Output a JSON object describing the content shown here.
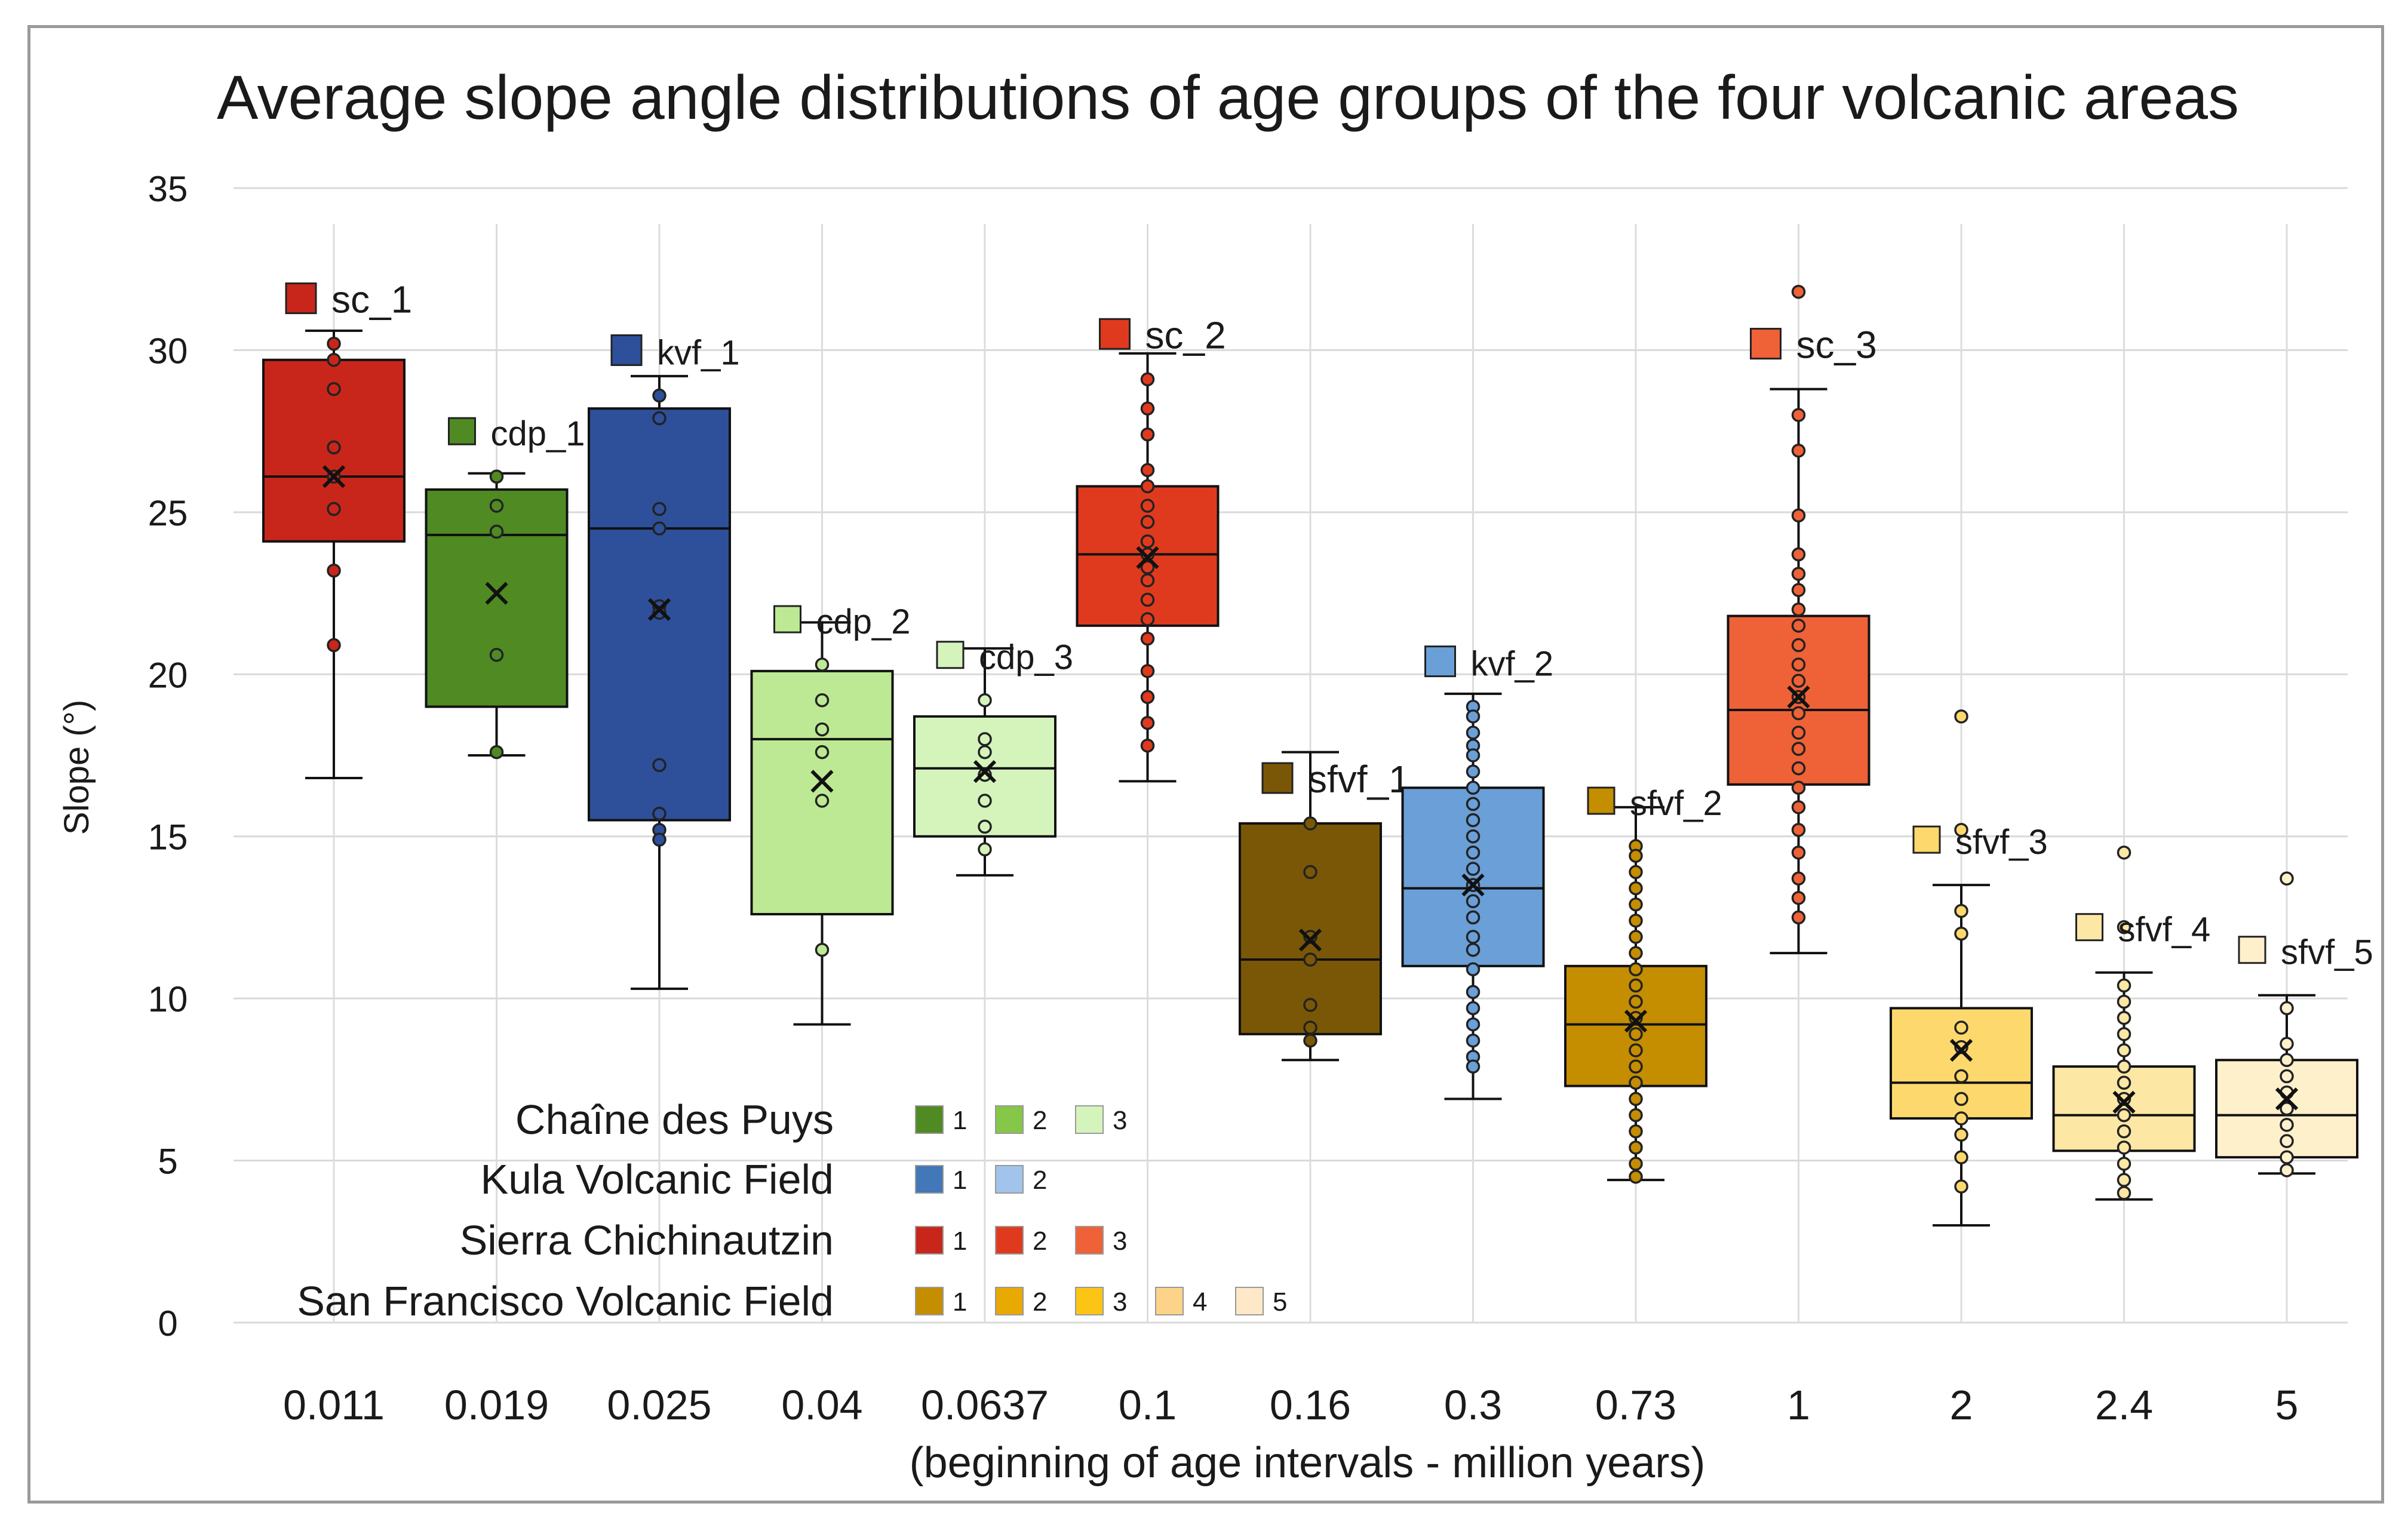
{
  "chart_data": {
    "type": "box",
    "title": "Average slope angle distributions of age groups of the four volcanic areas",
    "ylabel": "Slope (°)",
    "xlabel": "(beginning of age intervals - million years)",
    "ylim": [
      0,
      35
    ],
    "y_ticks": [
      0,
      5,
      10,
      15,
      20,
      25,
      30,
      35
    ],
    "grid": true,
    "categories": [
      "0.011",
      "0.019",
      "0.025",
      "0.04",
      "0.0637",
      "0.1",
      "0.16",
      "0.3",
      "0.73",
      "1",
      "2",
      "2.4",
      "5"
    ],
    "series": [
      {
        "name": "sc_1",
        "category": "0.011",
        "color": "#c8261a",
        "min": 16.8,
        "q1": 24.1,
        "median": 26.1,
        "q3": 29.7,
        "max": 30.6,
        "mean": 26.1,
        "points": [
          30.2,
          29.7,
          28.8,
          27.0,
          26.1,
          25.1,
          23.2,
          20.9
        ]
      },
      {
        "name": "cdp_1",
        "category": "0.019",
        "color": "#4f8a23",
        "min": 17.5,
        "q1": 19.0,
        "median": 24.3,
        "q3": 25.7,
        "max": 26.2,
        "mean": 22.5,
        "points": [
          26.1,
          25.2,
          24.4,
          20.6,
          17.6
        ]
      },
      {
        "name": "kvf_1",
        "category": "0.025",
        "color": "#2e509a",
        "min": 10.3,
        "q1": 15.5,
        "median": 24.5,
        "q3": 28.2,
        "max": 29.2,
        "mean": 22.0,
        "points": [
          28.6,
          27.9,
          25.1,
          24.5,
          22.1,
          21.9,
          17.2,
          15.7,
          15.2,
          14.9
        ]
      },
      {
        "name": "cdp_2",
        "category": "0.04",
        "color": "#bde994",
        "min": 9.2,
        "q1": 12.6,
        "median": 18.0,
        "q3": 20.1,
        "max": 21.6,
        "mean": 16.7,
        "points": [
          20.3,
          19.2,
          18.3,
          17.6,
          16.1,
          11.5
        ]
      },
      {
        "name": "cdp_3",
        "category": "0.0637",
        "color": "#d4f4bc",
        "min": 13.8,
        "q1": 15.0,
        "median": 17.1,
        "q3": 18.7,
        "max": 20.8,
        "mean": 17.0,
        "points": [
          19.2,
          18.0,
          17.6,
          16.9,
          16.1,
          15.3,
          14.6
        ]
      },
      {
        "name": "sc_2",
        "category": "0.1",
        "color": "#e03a1e",
        "min": 16.7,
        "q1": 21.5,
        "median": 23.7,
        "q3": 25.8,
        "max": 29.9,
        "mean": 23.6,
        "points": [
          29.1,
          28.2,
          27.4,
          26.3,
          25.8,
          25.2,
          24.7,
          24.1,
          23.7,
          23.3,
          22.9,
          22.3,
          21.7,
          21.1,
          20.1,
          19.3,
          18.5,
          17.8
        ]
      },
      {
        "name": "sfvf_1",
        "category": "0.16",
        "color": "#7a5706",
        "min": 8.1,
        "q1": 8.9,
        "median": 11.2,
        "q3": 15.4,
        "max": 17.6,
        "mean": 11.8,
        "points": [
          15.4,
          13.9,
          11.9,
          11.2,
          9.8,
          9.1,
          8.7
        ]
      },
      {
        "name": "kvf_2",
        "category": "0.3",
        "color": "#6a9fd8",
        "min": 6.9,
        "q1": 11.0,
        "median": 13.4,
        "q3": 16.5,
        "max": 19.4,
        "mean": 13.5,
        "points": [
          19.0,
          18.7,
          18.2,
          17.8,
          17.5,
          17.0,
          16.5,
          16.0,
          15.5,
          15.0,
          14.5,
          14.0,
          13.5,
          13.0,
          12.5,
          11.9,
          11.5,
          10.9,
          10.2,
          9.7,
          9.2,
          8.7,
          8.2,
          7.9
        ]
      },
      {
        "name": "sfvf_2",
        "category": "0.73",
        "color": "#c48e00",
        "min": 4.4,
        "q1": 7.3,
        "median": 9.2,
        "q3": 11.0,
        "max": 15.9,
        "mean": 9.3,
        "points": [
          14.7,
          14.4,
          13.9,
          13.4,
          12.9,
          12.4,
          11.9,
          11.4,
          10.9,
          10.4,
          9.9,
          9.4,
          8.9,
          8.4,
          7.9,
          7.4,
          6.9,
          6.4,
          5.9,
          5.4,
          4.9,
          4.5
        ]
      },
      {
        "name": "sc_3",
        "category": "1",
        "color": "#ef6137",
        "min": 11.4,
        "q1": 16.6,
        "median": 18.9,
        "q3": 21.8,
        "max": 28.8,
        "mean": 19.3,
        "points": [
          31.8,
          28.0,
          26.9,
          24.9,
          23.7,
          23.1,
          22.6,
          22.0,
          21.5,
          20.9,
          20.3,
          19.8,
          19.3,
          18.8,
          18.2,
          17.7,
          17.1,
          16.5,
          15.9,
          15.2,
          14.5,
          13.7,
          13.1,
          12.5
        ]
      },
      {
        "name": "sfvf_3",
        "category": "2",
        "color": "#fdd86d",
        "min": 3.0,
        "q1": 6.3,
        "median": 7.4,
        "q3": 9.7,
        "max": 13.5,
        "mean": 8.4,
        "points": [
          18.7,
          15.2,
          12.7,
          12.0,
          9.1,
          8.5,
          7.6,
          6.9,
          6.3,
          5.8,
          5.1,
          4.2
        ]
      },
      {
        "name": "sfvf_4",
        "category": "2.4",
        "color": "#fde7a4",
        "min": 3.8,
        "q1": 5.3,
        "median": 6.4,
        "q3": 7.9,
        "max": 10.8,
        "mean": 6.8,
        "points": [
          14.5,
          12.2,
          10.4,
          9.9,
          9.4,
          8.9,
          8.4,
          7.9,
          7.4,
          6.9,
          6.4,
          5.9,
          5.4,
          4.9,
          4.4,
          4.0
        ]
      },
      {
        "name": "sfvf_5",
        "category": "5",
        "color": "#fef0cb",
        "min": 4.6,
        "q1": 5.1,
        "median": 6.4,
        "q3": 8.1,
        "max": 10.1,
        "mean": 6.9,
        "points": [
          13.7,
          9.7,
          8.6,
          8.1,
          7.6,
          7.1,
          6.6,
          6.1,
          5.6,
          5.1,
          4.7
        ]
      }
    ],
    "legend": {
      "rows": [
        {
          "label": "Chaîne des Puys",
          "items": [
            {
              "n": "1",
              "color": "#4f8a23"
            },
            {
              "n": "2",
              "color": "#86c649"
            },
            {
              "n": "3",
              "color": "#d4f4bc"
            }
          ]
        },
        {
          "label": "Kula Volcanic Field",
          "items": [
            {
              "n": "1",
              "color": "#4277b8"
            },
            {
              "n": "2",
              "color": "#a2c4ec"
            }
          ]
        },
        {
          "label": "Sierra Chichinautzin",
          "items": [
            {
              "n": "1",
              "color": "#c8261a"
            },
            {
              "n": "2",
              "color": "#e03a1e"
            },
            {
              "n": "3",
              "color": "#ef6137"
            }
          ]
        },
        {
          "label": "San Francisco Volcanic Field",
          "items": [
            {
              "n": "1",
              "color": "#c48e00"
            },
            {
              "n": "2",
              "color": "#e8a902"
            },
            {
              "n": "3",
              "color": "#fcc515"
            },
            {
              "n": "4",
              "color": "#fdd38a"
            },
            {
              "n": "5",
              "color": "#fde8c8"
            }
          ]
        }
      ]
    }
  }
}
